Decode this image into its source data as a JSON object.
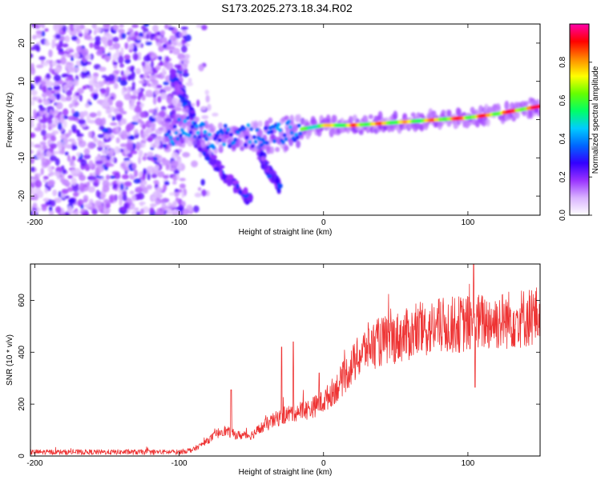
{
  "title": "S173.2025.273.18.34.R02",
  "chart_data": [
    {
      "type": "heatmap",
      "title": "S173.2025.273.18.34.R02",
      "xlabel": "Height of straight line (km)",
      "ylabel": "Frequency (Hz)",
      "xlim": [
        -203,
        150
      ],
      "ylim": [
        -25,
        25
      ],
      "xticks": [
        -200,
        -100,
        0,
        100
      ],
      "yticks": [
        20,
        10,
        0,
        -10,
        -20
      ],
      "colorbar": {
        "label": "Normalized spectral amplitude",
        "range": [
          0,
          1
        ],
        "ticks": [
          "0.0",
          "0.2",
          "0.4",
          "0.6",
          "0.8"
        ],
        "colors": [
          "#ffffff",
          "#d9b3ff",
          "#9933ff",
          "#3300ff",
          "#0066ff",
          "#00ccff",
          "#00ff66",
          "#66ff00",
          "#ffff00",
          "#ff8800",
          "#ff0000",
          "#ff00aa"
        ]
      },
      "ridge": {
        "x": [
          -110,
          -95,
          -85,
          -75,
          -60,
          -45,
          -30,
          -15,
          0,
          20,
          40,
          60,
          80,
          100,
          120,
          150
        ],
        "freq": [
          -5,
          -1,
          -4,
          -5,
          -4,
          -4,
          -4,
          -2.5,
          -1.5,
          -1.5,
          -1,
          -0.5,
          0,
          0.5,
          1.5,
          3.5
        ],
        "amplitude": [
          0.25,
          0.3,
          0.35,
          0.35,
          0.4,
          0.4,
          0.4,
          0.55,
          0.7,
          0.85,
          0.85,
          0.75,
          0.85,
          0.9,
          0.9,
          0.95
        ]
      },
      "branches": [
        {
          "x": [
            -90,
            -80,
            -70,
            -60,
            -50
          ],
          "freq": [
            -5,
            -9,
            -14,
            -18,
            -21
          ]
        },
        {
          "x": [
            -45,
            -40,
            -35,
            -30
          ],
          "freq": [
            -8,
            -12,
            -15,
            -18
          ]
        },
        {
          "x": [
            -105,
            -100,
            -95,
            -90
          ],
          "freq": [
            12,
            8,
            4,
            1
          ]
        }
      ],
      "noise_region": {
        "x": [
          -203,
          -95
        ],
        "freq": [
          -25,
          25
        ],
        "level": 0.25
      }
    },
    {
      "type": "line",
      "xlabel": "Height of straight line (km)",
      "ylabel": "SNR (10 * v/v)",
      "xlim": [
        -203,
        150
      ],
      "ylim": [
        0,
        740
      ],
      "xticks": [
        -200,
        -100,
        0,
        100
      ],
      "yticks": [
        0,
        200,
        400,
        600
      ],
      "series": [
        {
          "name": "SNR",
          "color": "#ee3333",
          "envelope": {
            "x": [
              -203,
              -100,
              -90,
              -80,
              -70,
              -60,
              -50,
              -40,
              -30,
              -20,
              -10,
              0,
              10,
              20,
              30,
              40,
              60,
              80,
              100,
              120,
              150
            ],
            "y": [
              15,
              15,
              25,
              60,
              100,
              80,
              80,
              120,
              150,
              170,
              180,
              210,
              270,
              350,
              420,
              440,
              470,
              500,
              510,
              520,
              540
            ]
          },
          "spikes": [
            {
              "x": -64,
              "y": 255
            },
            {
              "x": -29,
              "y": 420
            },
            {
              "x": -21,
              "y": 440
            },
            {
              "x": -3,
              "y": 320
            },
            {
              "x": 104,
              "y": 740
            },
            {
              "x": 105,
              "y": 265
            }
          ]
        }
      ]
    }
  ]
}
